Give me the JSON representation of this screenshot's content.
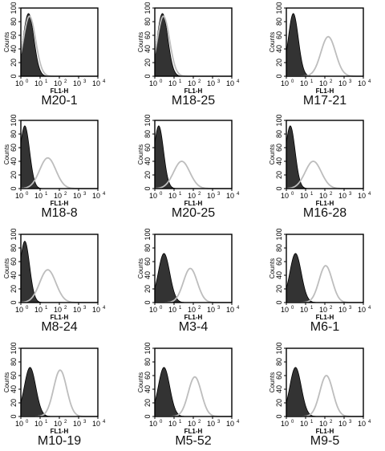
{
  "figure": {
    "y_axis_label": "Counts",
    "x_axis_label": "FL1-H",
    "y_ticks": [
      "0",
      "20",
      "40",
      "60",
      "80",
      "100"
    ],
    "x_tick_bases": [
      "10",
      "10",
      "10",
      "10",
      "10"
    ],
    "x_tick_exponents": [
      "0",
      "1",
      "2",
      "3",
      "4"
    ],
    "colors": {
      "control_fill": "#333333",
      "sample_line": "#bdbdbd",
      "axes": "#000000"
    }
  },
  "chart_data": [
    {
      "type": "area",
      "title": "M20-1",
      "xscale": "log",
      "xlim": [
        1,
        10000
      ],
      "ylim": [
        0,
        100
      ],
      "series": [
        {
          "values_control": {
            "peak_x": 2.5,
            "peak_y": 92,
            "sigma_decades": 0.28
          }
        },
        {
          "values_sample": {
            "peak_x": 2.8,
            "peak_y": 88,
            "sigma_decades": 0.32
          }
        }
      ]
    },
    {
      "type": "area",
      "title": "M18-25",
      "xscale": "log",
      "xlim": [
        1,
        10000
      ],
      "ylim": [
        0,
        100
      ],
      "series": [
        {
          "values_control": {
            "peak_x": 2.5,
            "peak_y": 92,
            "sigma_decades": 0.28
          }
        },
        {
          "values_sample": {
            "peak_x": 2.8,
            "peak_y": 88,
            "sigma_decades": 0.32
          }
        }
      ]
    },
    {
      "type": "area",
      "title": "M17-21",
      "xscale": "log",
      "xlim": [
        1,
        10000
      ],
      "ylim": [
        0,
        100
      ],
      "series": [
        {
          "values_control": {
            "peak_x": 2.3,
            "peak_y": 92,
            "sigma_decades": 0.26
          }
        },
        {
          "values_sample": {
            "peak_x": 150,
            "peak_y": 58,
            "sigma_decades": 0.38
          }
        }
      ]
    },
    {
      "type": "area",
      "title": "M18-8",
      "xscale": "log",
      "xlim": [
        1,
        10000
      ],
      "ylim": [
        0,
        100
      ],
      "series": [
        {
          "values_control": {
            "peak_x": 1.6,
            "peak_y": 92,
            "sigma_decades": 0.25
          }
        },
        {
          "values_sample": {
            "peak_x": 25,
            "peak_y": 45,
            "sigma_decades": 0.42
          }
        }
      ]
    },
    {
      "type": "area",
      "title": "M20-25",
      "xscale": "log",
      "xlim": [
        1,
        10000
      ],
      "ylim": [
        0,
        100
      ],
      "series": [
        {
          "values_control": {
            "peak_x": 1.6,
            "peak_y": 92,
            "sigma_decades": 0.25
          }
        },
        {
          "values_sample": {
            "peak_x": 25,
            "peak_y": 40,
            "sigma_decades": 0.42
          }
        }
      ]
    },
    {
      "type": "area",
      "title": "M16-28",
      "xscale": "log",
      "xlim": [
        1,
        10000
      ],
      "ylim": [
        0,
        100
      ],
      "series": [
        {
          "values_control": {
            "peak_x": 1.6,
            "peak_y": 92,
            "sigma_decades": 0.25
          }
        },
        {
          "values_sample": {
            "peak_x": 25,
            "peak_y": 40,
            "sigma_decades": 0.42
          }
        }
      ]
    },
    {
      "type": "area",
      "title": "M8-24",
      "xscale": "log",
      "xlim": [
        1,
        10000
      ],
      "ylim": [
        0,
        100
      ],
      "series": [
        {
          "values_control": {
            "peak_x": 1.6,
            "peak_y": 90,
            "sigma_decades": 0.25
          }
        },
        {
          "values_sample": {
            "peak_x": 25,
            "peak_y": 48,
            "sigma_decades": 0.42
          }
        }
      ]
    },
    {
      "type": "area",
      "title": "M3-4",
      "xscale": "log",
      "xlim": [
        1,
        10000
      ],
      "ylim": [
        0,
        100
      ],
      "series": [
        {
          "values_control": {
            "peak_x": 3.0,
            "peak_y": 72,
            "sigma_decades": 0.3
          }
        },
        {
          "values_sample": {
            "peak_x": 70,
            "peak_y": 50,
            "sigma_decades": 0.36
          }
        }
      ]
    },
    {
      "type": "area",
      "title": "M6-1",
      "xscale": "log",
      "xlim": [
        1,
        10000
      ],
      "ylim": [
        0,
        100
      ],
      "series": [
        {
          "values_control": {
            "peak_x": 3.0,
            "peak_y": 72,
            "sigma_decades": 0.3
          }
        },
        {
          "values_sample": {
            "peak_x": 110,
            "peak_y": 54,
            "sigma_decades": 0.34
          }
        }
      ]
    },
    {
      "type": "area",
      "title": "M10-19",
      "xscale": "log",
      "xlim": [
        1,
        10000
      ],
      "ylim": [
        0,
        100
      ],
      "series": [
        {
          "values_control": {
            "peak_x": 3.0,
            "peak_y": 72,
            "sigma_decades": 0.3
          }
        },
        {
          "values_sample": {
            "peak_x": 110,
            "peak_y": 68,
            "sigma_decades": 0.34
          }
        }
      ]
    },
    {
      "type": "area",
      "title": "M5-52",
      "xscale": "log",
      "xlim": [
        1,
        10000
      ],
      "ylim": [
        0,
        100
      ],
      "series": [
        {
          "values_control": {
            "peak_x": 3.0,
            "peak_y": 72,
            "sigma_decades": 0.3
          }
        },
        {
          "values_sample": {
            "peak_x": 120,
            "peak_y": 58,
            "sigma_decades": 0.34
          }
        }
      ]
    },
    {
      "type": "area",
      "title": "M9-5",
      "xscale": "log",
      "xlim": [
        1,
        10000
      ],
      "ylim": [
        0,
        100
      ],
      "series": [
        {
          "values_control": {
            "peak_x": 3.0,
            "peak_y": 72,
            "sigma_decades": 0.3
          }
        },
        {
          "values_sample": {
            "peak_x": 120,
            "peak_y": 60,
            "sigma_decades": 0.34
          }
        }
      ]
    }
  ]
}
